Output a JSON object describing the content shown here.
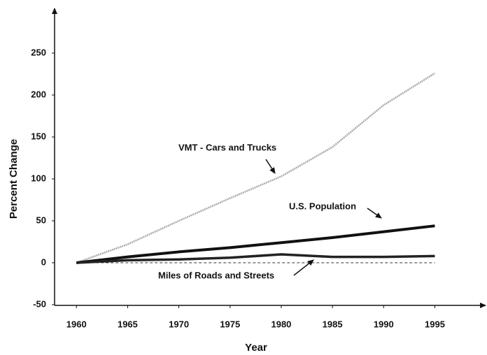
{
  "chart_data": {
    "type": "line",
    "x_label": "Year",
    "y_label": "Percent Change",
    "x": [
      1960,
      1965,
      1970,
      1975,
      1980,
      1985,
      1990,
      1995
    ],
    "series": [
      {
        "name": "VMT - Cars and Trucks",
        "color": "#a8a8a8",
        "values": [
          0,
          22,
          50,
          77,
          103,
          138,
          188,
          226
        ]
      },
      {
        "name": "U.S. Population",
        "color": "#111111",
        "values": [
          0,
          7,
          13,
          18,
          24,
          30,
          37,
          44
        ]
      },
      {
        "name": "Miles of Roads and Streets",
        "color": "#222222",
        "values": [
          0,
          3,
          4,
          6,
          10,
          7,
          7,
          8
        ]
      }
    ],
    "xlim": [
      1958,
      1999
    ],
    "xticks": [
      1960,
      1965,
      1970,
      1975,
      1980,
      1985,
      1990,
      1995
    ],
    "ylim": [
      -50,
      250
    ],
    "yticks": [
      -50,
      0,
      50,
      100,
      150,
      200,
      250
    ],
    "grid": false
  }
}
